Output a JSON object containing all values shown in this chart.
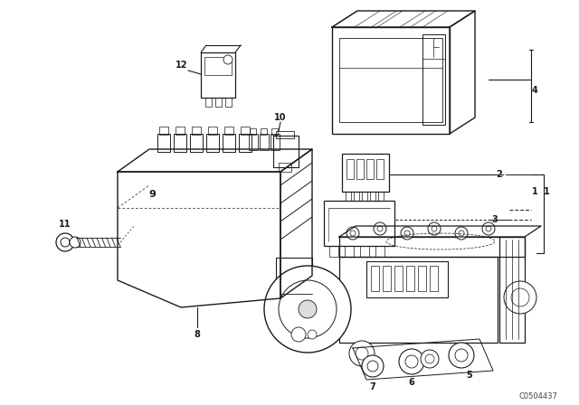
{
  "bg_color": "#ffffff",
  "line_color": "#1a1a1a",
  "fig_width": 6.4,
  "fig_height": 4.48,
  "dpi": 100,
  "watermark": "C0504437"
}
